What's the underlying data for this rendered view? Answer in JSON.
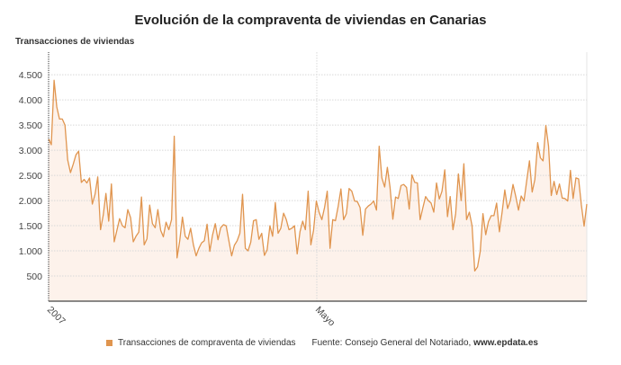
{
  "chart_data": {
    "type": "area",
    "title": "Evolución de la compraventa de viviendas en Canarias",
    "ylabel": "Transacciones de viviendas",
    "xlabel": "",
    "x_start": "2007",
    "x_tick_labels": [
      "2007",
      "Mayo"
    ],
    "y_ticks": [
      500,
      1000,
      1500,
      2000,
      2500,
      3000,
      3500,
      4000,
      4500
    ],
    "y_tick_labels": [
      "500",
      "1.000",
      "1.500",
      "2.000",
      "2.500",
      "3.000",
      "3.500",
      "4.000",
      "4.500"
    ],
    "ylim": [
      0,
      4950
    ],
    "grid": true,
    "legend_placement": "bottom",
    "colors": {
      "line": "#e0954f",
      "fill": "#fdf2eb"
    },
    "series": [
      {
        "name": "Transacciones de compraventa de viviendas",
        "values": [
          3230,
          3110,
          4390,
          3860,
          3620,
          3620,
          3500,
          2810,
          2555,
          2720,
          2910,
          2980,
          2360,
          2420,
          2350,
          2450,
          1930,
          2125,
          2470,
          1420,
          1710,
          2140,
          1590,
          2330,
          1180,
          1410,
          1640,
          1500,
          1460,
          1820,
          1660,
          1180,
          1290,
          1370,
          2070,
          1120,
          1240,
          1910,
          1540,
          1460,
          1820,
          1410,
          1280,
          1570,
          1420,
          1620,
          3280,
          860,
          1200,
          1670,
          1290,
          1230,
          1450,
          1120,
          900,
          1050,
          1160,
          1200,
          1530,
          990,
          1310,
          1540,
          1220,
          1460,
          1520,
          1500,
          1200,
          900,
          1110,
          1200,
          1350,
          2125,
          1050,
          1000,
          1170,
          1600,
          1620,
          1230,
          1350,
          910,
          1020,
          1500,
          1290,
          1960,
          1350,
          1450,
          1750,
          1620,
          1420,
          1450,
          1500,
          940,
          1380,
          1590,
          1420,
          2185,
          1120,
          1410,
          1990,
          1770,
          1620,
          1860,
          2185,
          1050,
          1620,
          1600,
          1890,
          2230,
          1620,
          1740,
          2240,
          2185,
          1990,
          1980,
          1860,
          1310,
          1830,
          1890,
          1930,
          1990,
          1810,
          3080,
          2450,
          2270,
          2660,
          2260,
          1630,
          2070,
          2040,
          2300,
          2320,
          2260,
          1830,
          2510,
          2360,
          2350,
          1620,
          1860,
          2080,
          2000,
          1950,
          1770,
          2350,
          2030,
          2185,
          2610,
          1680,
          2080,
          1420,
          1740,
          2530,
          2000,
          2730,
          1620,
          1770,
          1500,
          600,
          680,
          990,
          1740,
          1320,
          1580,
          1700,
          1700,
          1950,
          1380,
          1770,
          2210,
          1840,
          2000,
          2320,
          2080,
          1810,
          2090,
          1990,
          2390,
          2790,
          2170,
          2420,
          3150,
          2850,
          2790,
          3490,
          3080,
          2100,
          2380,
          2120,
          2330,
          2050,
          2040,
          1990,
          2600,
          2040,
          2450,
          2430,
          1920,
          1490,
          1930
        ]
      }
    ],
    "legend": [
      "Transacciones de compraventa de viviendas"
    ]
  },
  "source": {
    "label": "Fuente: Consejo General del Notariado,",
    "site": "www.epdata.es"
  }
}
